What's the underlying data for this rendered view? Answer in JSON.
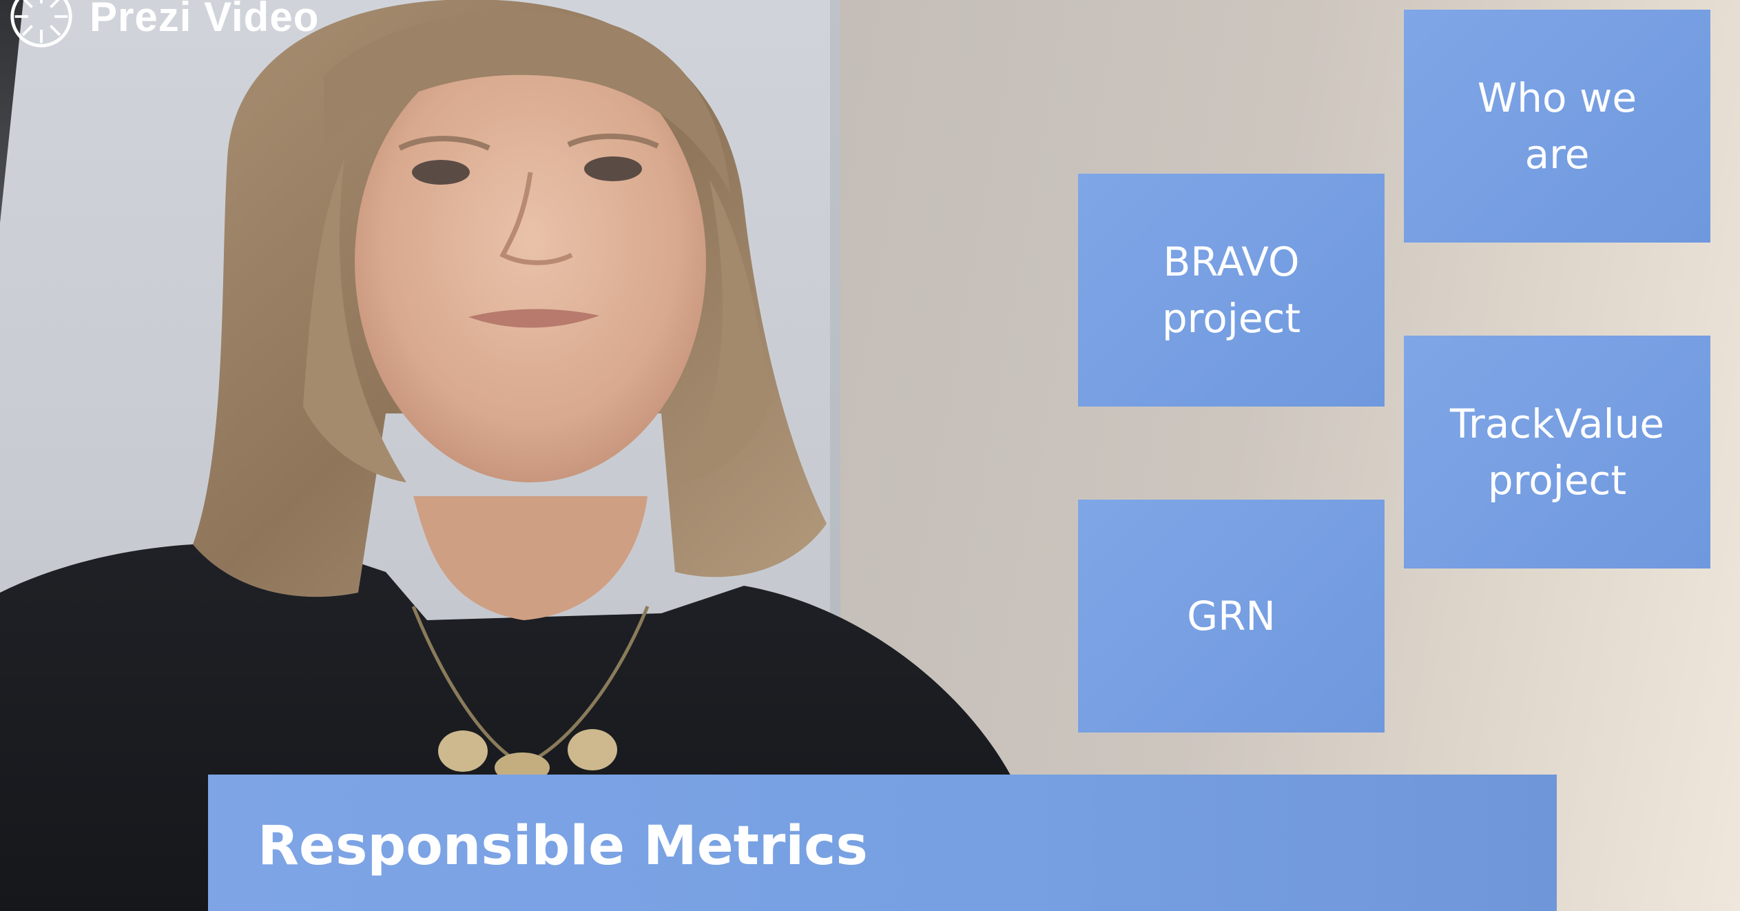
{
  "logo": {
    "text": "Prezi Video",
    "icon": "prezi-logo-icon"
  },
  "tiles": [
    {
      "label": "Who we\nare"
    },
    {
      "label": "BRAVO\nproject"
    },
    {
      "label": "TrackValue\nproject"
    },
    {
      "label": "GRN"
    }
  ],
  "banner": {
    "title": "Responsible Metrics"
  },
  "colors": {
    "tile_blue": "#7ba3e6",
    "banner_blue": "#78a0e2",
    "text": "#ffffff"
  }
}
